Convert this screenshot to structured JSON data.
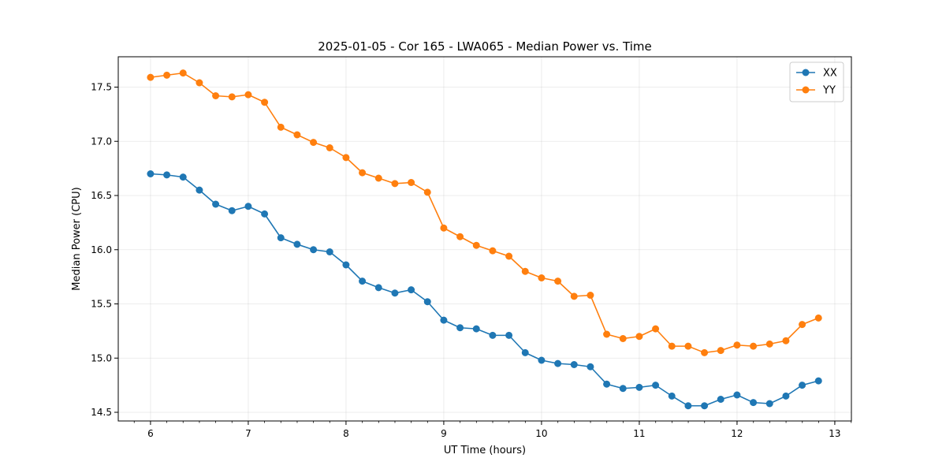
{
  "chart_data": {
    "type": "line",
    "title": "2025-01-05 - Cor 165 - LWA065 - Median Power vs. Time",
    "xlabel": "UT Time (hours)",
    "ylabel": "Median Power (CPU)",
    "xlim": [
      5.67,
      13.17
    ],
    "ylim": [
      14.42,
      17.78
    ],
    "xticks": [
      6,
      7,
      8,
      9,
      10,
      11,
      12,
      13
    ],
    "yticks": [
      14.5,
      15.0,
      15.5,
      16.0,
      16.5,
      17.0,
      17.5
    ],
    "minor_x_step": 0.1667,
    "grid": true,
    "legend_position": "top-right",
    "x": [
      6.0,
      6.1667,
      6.3333,
      6.5,
      6.6667,
      6.8333,
      7.0,
      7.1667,
      7.3333,
      7.5,
      7.6667,
      7.8333,
      8.0,
      8.1667,
      8.3333,
      8.5,
      8.6667,
      8.8333,
      9.0,
      9.1667,
      9.3333,
      9.5,
      9.6667,
      9.8333,
      10.0,
      10.1667,
      10.3333,
      10.5,
      10.6667,
      10.8333,
      11.0,
      11.1667,
      11.3333,
      11.5,
      11.6667,
      11.8333,
      12.0,
      12.1667,
      12.3333,
      12.5,
      12.6667,
      12.8333
    ],
    "series": [
      {
        "name": "XX",
        "color": "#1f77b4",
        "values": [
          16.7,
          16.69,
          16.67,
          16.55,
          16.42,
          16.36,
          16.4,
          16.33,
          16.11,
          16.05,
          16.0,
          15.98,
          15.86,
          15.71,
          15.65,
          15.6,
          15.63,
          15.52,
          15.35,
          15.28,
          15.27,
          15.21,
          15.21,
          15.05,
          14.98,
          14.95,
          14.94,
          14.92,
          14.76,
          14.72,
          14.73,
          14.75,
          14.65,
          14.56,
          14.56,
          14.62,
          14.66,
          14.59,
          14.58,
          14.65,
          14.75,
          14.79
        ]
      },
      {
        "name": "YY",
        "color": "#ff7f0e",
        "values": [
          17.59,
          17.61,
          17.63,
          17.54,
          17.42,
          17.41,
          17.43,
          17.36,
          17.13,
          17.06,
          16.99,
          16.94,
          16.85,
          16.71,
          16.66,
          16.61,
          16.62,
          16.53,
          16.2,
          16.12,
          16.04,
          15.99,
          15.94,
          15.8,
          15.74,
          15.71,
          15.57,
          15.58,
          15.22,
          15.18,
          15.2,
          15.27,
          15.11,
          15.11,
          15.05,
          15.07,
          15.12,
          15.11,
          15.13,
          15.16,
          15.31,
          15.37
        ]
      }
    ]
  }
}
